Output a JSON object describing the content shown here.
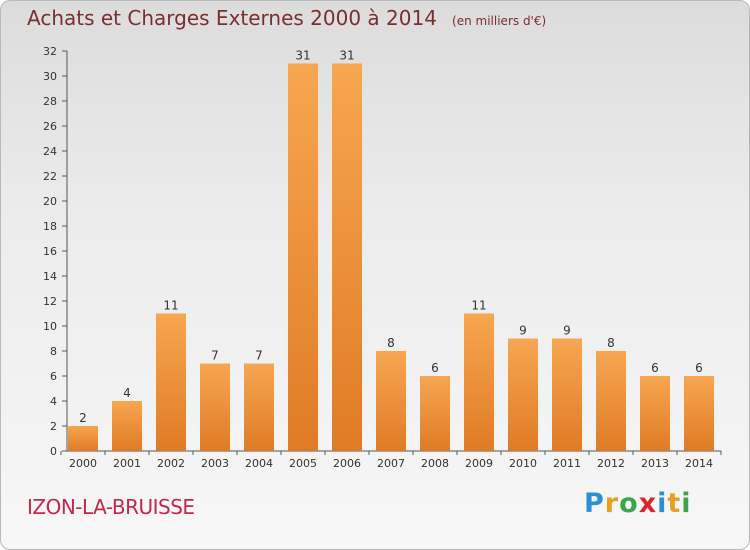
{
  "header": {
    "title": "Achats et Charges Externes 2000 à 2014",
    "subtitle": "(en milliers d'€)"
  },
  "footer": {
    "place": "IZON-LA-BRUISSE",
    "logo_letters": [
      {
        "ch": "P",
        "color": "#2b8fd6"
      },
      {
        "ch": "r",
        "color": "#e8a020"
      },
      {
        "ch": "o",
        "color": "#3aa64a"
      },
      {
        "ch": "x",
        "color": "#d9262b"
      },
      {
        "ch": "i",
        "color": "#2b8fd6"
      },
      {
        "ch": "t",
        "color": "#e8a020"
      },
      {
        "ch": "i",
        "color": "#3aa64a"
      }
    ]
  },
  "colors": {
    "bar_light": "#f7a651",
    "bar_dark": "#e07b25",
    "axis": "#555555",
    "grid": "#cccccc"
  },
  "chart_data": {
    "type": "bar",
    "categories": [
      "2000",
      "2001",
      "2002",
      "2003",
      "2004",
      "2005",
      "2006",
      "2007",
      "2008",
      "2009",
      "2010",
      "2011",
      "2012",
      "2013",
      "2014"
    ],
    "values": [
      2,
      4,
      11,
      7,
      7,
      31,
      31,
      8,
      6,
      11,
      9,
      9,
      8,
      6,
      6
    ],
    "ylim": [
      0,
      32
    ],
    "yticks": [
      0,
      2,
      4,
      6,
      8,
      10,
      12,
      14,
      16,
      18,
      20,
      22,
      24,
      26,
      28,
      30,
      32
    ],
    "xlabel": "",
    "ylabel": "",
    "grid": false
  }
}
